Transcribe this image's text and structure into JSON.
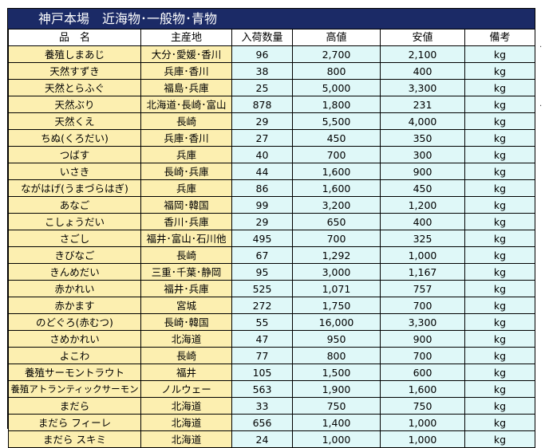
{
  "title": "神戸本場　近海物･一般物･青物",
  "headers": [
    "品　名",
    "主産地",
    "入荷数量",
    "高値",
    "安値",
    "備考"
  ],
  "rows": [
    {
      "name": "養殖しまあじ",
      "origin": "大分･愛媛･香川",
      "qty": "96",
      "high": "2,700",
      "low": "2,100",
      "unit": "kg"
    },
    {
      "name": "天然すずき",
      "origin": "兵庫･香川",
      "qty": "38",
      "high": "800",
      "low": "400",
      "unit": "kg"
    },
    {
      "name": "天然とらふぐ",
      "origin": "福島･兵庫",
      "qty": "25",
      "high": "5,000",
      "low": "3,300",
      "unit": "kg"
    },
    {
      "name": "天然ぶり",
      "origin": "北海道･長崎･富山",
      "qty": "878",
      "high": "1,800",
      "low": "231",
      "unit": "kg"
    },
    {
      "name": "天然くえ",
      "origin": "長崎",
      "qty": "29",
      "high": "5,500",
      "low": "4,000",
      "unit": "kg"
    },
    {
      "name": "ちぬ(くろだい)",
      "origin": "兵庫･香川",
      "qty": "27",
      "high": "450",
      "low": "350",
      "unit": "kg"
    },
    {
      "name": "つばす",
      "origin": "兵庫",
      "qty": "40",
      "high": "700",
      "low": "300",
      "unit": "kg"
    },
    {
      "name": "いさき",
      "origin": "長崎･兵庫",
      "qty": "44",
      "high": "1,600",
      "low": "900",
      "unit": "kg"
    },
    {
      "name": "ながはげ(うまづらはぎ)",
      "origin": "兵庫",
      "qty": "86",
      "high": "1,600",
      "low": "450",
      "unit": "kg"
    },
    {
      "name": "あなご",
      "origin": "福岡･韓国",
      "qty": "99",
      "high": "3,200",
      "low": "1,200",
      "unit": "kg"
    },
    {
      "name": "こしょうだい",
      "origin": "香川･兵庫",
      "qty": "29",
      "high": "650",
      "low": "400",
      "unit": "kg"
    },
    {
      "name": "さごし",
      "origin": "福井･富山･石川他",
      "qty": "495",
      "high": "700",
      "low": "325",
      "unit": "kg"
    },
    {
      "name": "きびなご",
      "origin": "長崎",
      "qty": "67",
      "high": "1,292",
      "low": "1,000",
      "unit": "kg"
    },
    {
      "name": "きんめだい",
      "origin": "三重･千葉･静岡",
      "qty": "95",
      "high": "3,000",
      "low": "1,167",
      "unit": "kg"
    },
    {
      "name": "赤かれい",
      "origin": "福井･兵庫",
      "qty": "525",
      "high": "1,071",
      "low": "757",
      "unit": "kg"
    },
    {
      "name": "赤かます",
      "origin": "宮城",
      "qty": "272",
      "high": "1,750",
      "low": "700",
      "unit": "kg"
    },
    {
      "name": "のどぐろ(赤むつ)",
      "origin": "長崎･韓国",
      "qty": "55",
      "high": "16,000",
      "low": "3,300",
      "unit": "kg"
    },
    {
      "name": "さめかれい",
      "origin": "北海道",
      "qty": "47",
      "high": "950",
      "low": "900",
      "unit": "kg"
    },
    {
      "name": "よこわ",
      "origin": "長崎",
      "qty": "77",
      "high": "800",
      "low": "700",
      "unit": "kg"
    },
    {
      "name": "養殖サーモントラウト",
      "origin": "福井",
      "qty": "105",
      "high": "1,500",
      "low": "600",
      "unit": "kg"
    },
    {
      "name": "養殖アトランティックサーモン",
      "origin": "ノルウェー",
      "qty": "563",
      "high": "1,900",
      "low": "1,600",
      "unit": "kg"
    },
    {
      "name": "まだら",
      "origin": "北海道",
      "qty": "33",
      "high": "750",
      "low": "750",
      "unit": "kg"
    },
    {
      "name": "まだら フィーレ",
      "origin": "北海道",
      "qty": "656",
      "high": "1,400",
      "low": "1,000",
      "unit": "kg"
    },
    {
      "name": "まだら スキミ",
      "origin": "北海道",
      "qty": "24",
      "high": "1,000",
      "low": "1,000",
      "unit": "kg"
    }
  ],
  "colors": {
    "title_bg": "#1b2a66",
    "name_bg": "#fcefb0",
    "value_bg": "#dff8f8"
  }
}
